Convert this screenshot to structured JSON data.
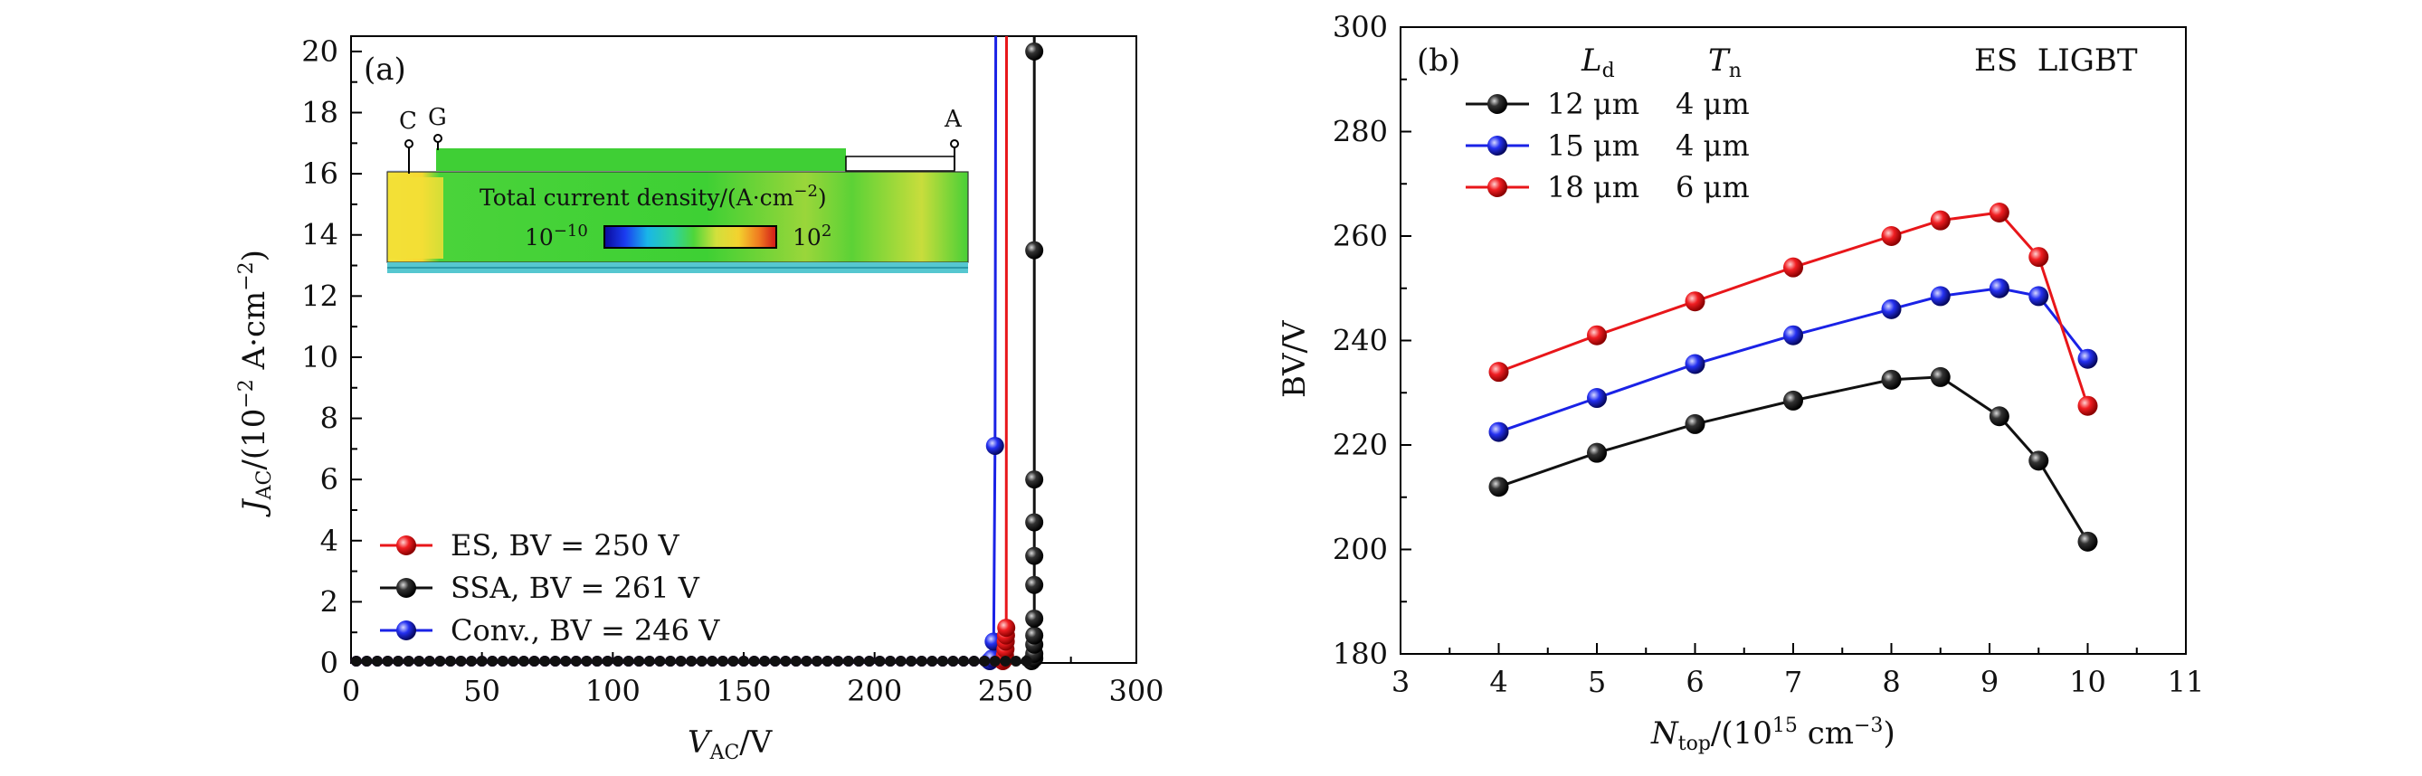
{
  "chart_data": [
    {
      "type": "line",
      "panel_label": "(a)",
      "xlabel_main": "V",
      "xlabel_sub": "AC",
      "xlabel_tail": "/V",
      "ylabel_main": "J",
      "ylabel_sub": "AC",
      "ylabel_tail": "/(10−2 A·cm−2)",
      "xlim": [
        0,
        300
      ],
      "ylim": [
        0,
        20.5
      ],
      "xticks": [
        0,
        50,
        100,
        150,
        200,
        250,
        300
      ],
      "yticks": [
        0,
        2,
        4,
        6,
        8,
        10,
        12,
        14,
        16,
        18,
        20
      ],
      "legend": [
        "ES, BV = 250 V",
        "SSA, BV = 261 V",
        "Conv., BV = 246 V"
      ],
      "series": [
        {
          "name": "ES",
          "color": "#e8161a",
          "x": [
            0,
            249,
            249.5,
            249.8,
            250.0,
            250.1,
            250.2,
            250.3,
            250.4
          ],
          "y": [
            0.06,
            0.06,
            0.12,
            0.25,
            0.45,
            0.7,
            0.9,
            1.15,
            20.5
          ]
        },
        {
          "name": "SSA",
          "color": "#111111",
          "x": [
            0,
            260,
            261,
            261,
            261,
            261,
            261,
            261,
            261,
            261,
            261,
            261,
            261,
            261
          ],
          "y": [
            0.06,
            0.06,
            0.15,
            0.3,
            0.6,
            0.9,
            1.45,
            2.55,
            3.5,
            4.6,
            6.0,
            13.5,
            20.0,
            20.5
          ]
        },
        {
          "name": "Conv.",
          "color": "#1a22e6",
          "x": [
            0,
            244,
            245,
            245.5,
            246,
            246.3
          ],
          "y": [
            0.06,
            0.06,
            0.15,
            0.7,
            7.1,
            20.5
          ]
        }
      ],
      "inset": {
        "title": "Total current density/(A·cm−2)",
        "scale_min": "10−10",
        "scale_max": "102",
        "terminals": [
          "C",
          "G",
          "A"
        ]
      }
    },
    {
      "type": "line",
      "panel_label": "(b)",
      "xlabel_main": "N",
      "xlabel_sub": "top",
      "xlabel_tail": "/(1015 cm−3)",
      "ylabel": "BV/V",
      "xlim": [
        3,
        11
      ],
      "ylim": [
        180,
        300
      ],
      "xticks": [
        3,
        4,
        5,
        6,
        7,
        8,
        9,
        10,
        11
      ],
      "yticks": [
        180,
        200,
        220,
        240,
        260,
        280,
        300
      ],
      "header_ld": "L",
      "header_ld_sub": "d",
      "header_tn": "T",
      "header_tn_sub": "n",
      "device_label": "ES  LIGBT",
      "legend": [
        {
          "ld": "12 μm",
          "tn": "4 μm"
        },
        {
          "ld": "15 μm",
          "tn": "4 μm"
        },
        {
          "ld": "18 μm",
          "tn": "6 μm"
        }
      ],
      "x": [
        4,
        5,
        6,
        7,
        8,
        8.5,
        9.1,
        9.5,
        10
      ],
      "series": [
        {
          "name": "12 μm 4 μm",
          "color": "#111111",
          "values": [
            212,
            218.5,
            224,
            228.5,
            232.5,
            233,
            225.5,
            217,
            201.5
          ]
        },
        {
          "name": "15 μm 4 μm",
          "color": "#1a22e6",
          "values": [
            222.5,
            229,
            235.5,
            241,
            246,
            248.5,
            250,
            248.5,
            236.5
          ]
        },
        {
          "name": "18 μm 6 μm",
          "color": "#e8161a",
          "values": [
            234,
            241,
            247.5,
            254,
            260,
            263,
            264.5,
            256,
            227.5
          ]
        }
      ]
    }
  ]
}
